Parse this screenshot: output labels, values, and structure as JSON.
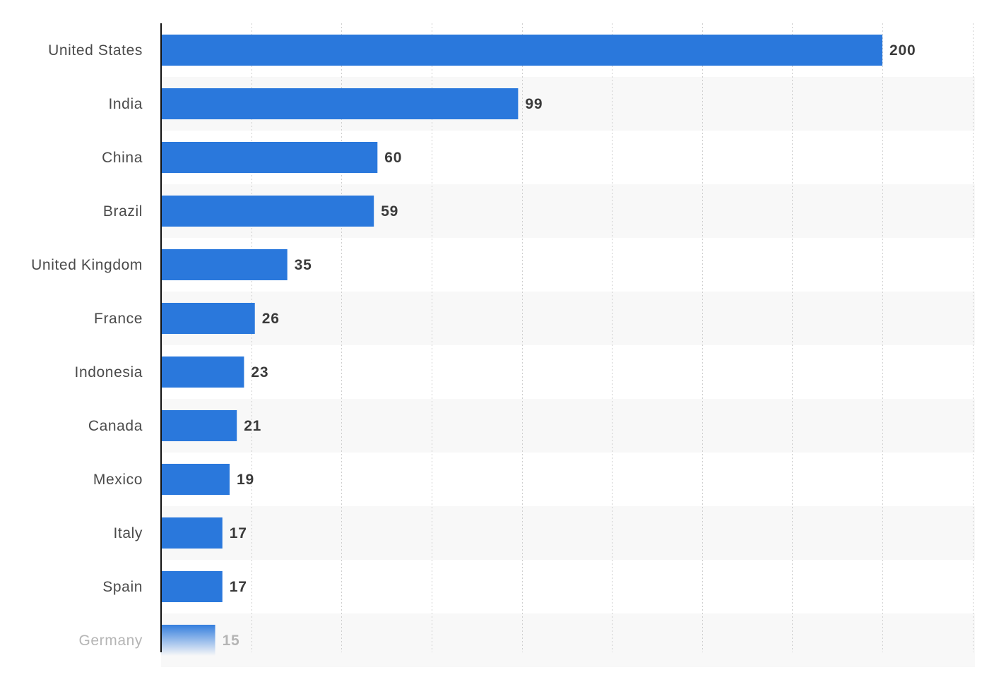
{
  "chart_data": {
    "type": "bar",
    "orientation": "horizontal",
    "categories": [
      "United States",
      "India",
      "China",
      "Brazil",
      "United Kingdom",
      "France",
      "Indonesia",
      "Canada",
      "Mexico",
      "Italy",
      "Spain",
      "Germany"
    ],
    "values": [
      200,
      99,
      60,
      59,
      35,
      26,
      23,
      21,
      19,
      17,
      17,
      15
    ],
    "value_labels": [
      "200",
      "99",
      "60",
      "59",
      "35",
      "26",
      "23",
      "21",
      "19",
      "17",
      "17",
      "15"
    ],
    "title": "",
    "xlabel": "",
    "ylabel": "",
    "xlim": [
      0,
      225
    ],
    "grid": true,
    "bar_color": "#2a78dc",
    "faded_last_category": true
  }
}
